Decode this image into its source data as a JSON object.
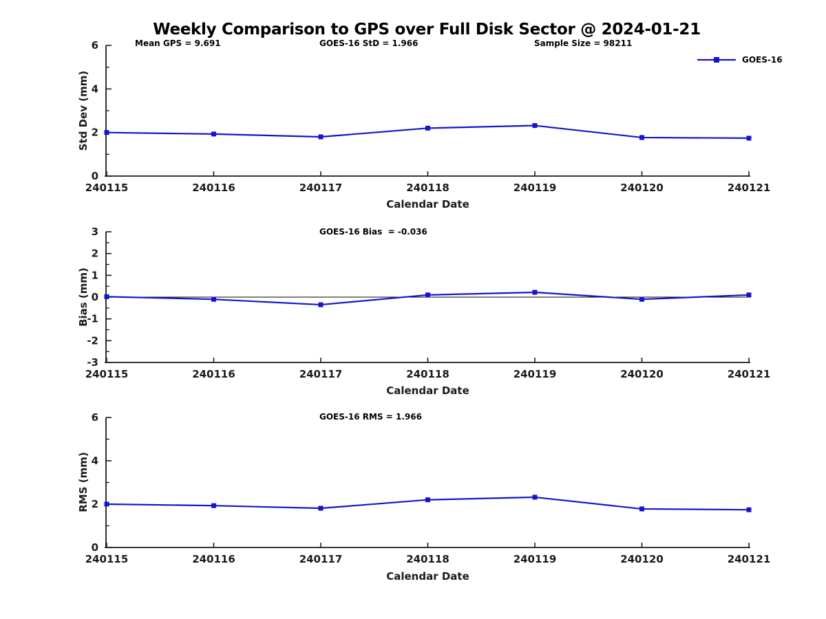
{
  "title": "Weekly Comparison to GPS over Full Disk Sector @ 2024-01-21",
  "legend": {
    "label": "GOES-16",
    "line_color": "#1414cc"
  },
  "chart_data": [
    {
      "type": "line",
      "subplot": "std-dev",
      "annotations": [
        {
          "text": "Mean GPS = 9.691"
        },
        {
          "text": "GOES-16 StD = 1.966"
        },
        {
          "text": "Sample Size = 98211"
        }
      ],
      "ylabel": "Std Dev (mm)",
      "xlabel": "Calendar Date",
      "categories": [
        "240115",
        "240116",
        "240117",
        "240118",
        "240119",
        "240120",
        "240121"
      ],
      "series": [
        {
          "name": "GOES-16",
          "color": "#1414cc",
          "marker": "square",
          "values": [
            2.0,
            1.93,
            1.8,
            2.2,
            2.32,
            1.77,
            1.74
          ]
        }
      ],
      "ylim": [
        0,
        6
      ],
      "yticks": [
        0,
        2,
        4,
        6
      ],
      "yminor": [
        1,
        3,
        5
      ],
      "zero_line": false,
      "grid": false,
      "legend_position": "top-right"
    },
    {
      "type": "line",
      "subplot": "bias",
      "annotations": [
        {
          "text": "GOES-16 Bias  = -0.036"
        }
      ],
      "ylabel": "Bias (mm)",
      "xlabel": "Calendar Date",
      "categories": [
        "240115",
        "240116",
        "240117",
        "240118",
        "240119",
        "240120",
        "240121"
      ],
      "series": [
        {
          "name": "GOES-16",
          "color": "#1414cc",
          "marker": "square",
          "values": [
            0.02,
            -0.1,
            -0.35,
            0.1,
            0.22,
            -0.1,
            0.1
          ]
        }
      ],
      "ylim": [
        -3,
        3
      ],
      "yticks": [
        -3,
        -2,
        -1,
        0,
        1,
        2,
        3
      ],
      "yminor": [
        -2.5,
        -1.5,
        -0.5,
        0.5,
        1.5,
        2.5
      ],
      "zero_line": true,
      "grid": false,
      "legend_position": "none"
    },
    {
      "type": "line",
      "subplot": "rms",
      "annotations": [
        {
          "text": "GOES-16 RMS = 1.966"
        }
      ],
      "ylabel": "RMS (mm)",
      "xlabel": "Calendar Date",
      "categories": [
        "240115",
        "240116",
        "240117",
        "240118",
        "240119",
        "240120",
        "240121"
      ],
      "series": [
        {
          "name": "GOES-16",
          "color": "#1414cc",
          "marker": "square",
          "values": [
            2.0,
            1.93,
            1.81,
            2.2,
            2.32,
            1.78,
            1.74
          ]
        }
      ],
      "ylim": [
        0,
        6
      ],
      "yticks": [
        0,
        2,
        4,
        6
      ],
      "yminor": [
        1,
        3,
        5
      ],
      "zero_line": false,
      "grid": false,
      "legend_position": "none"
    }
  ]
}
